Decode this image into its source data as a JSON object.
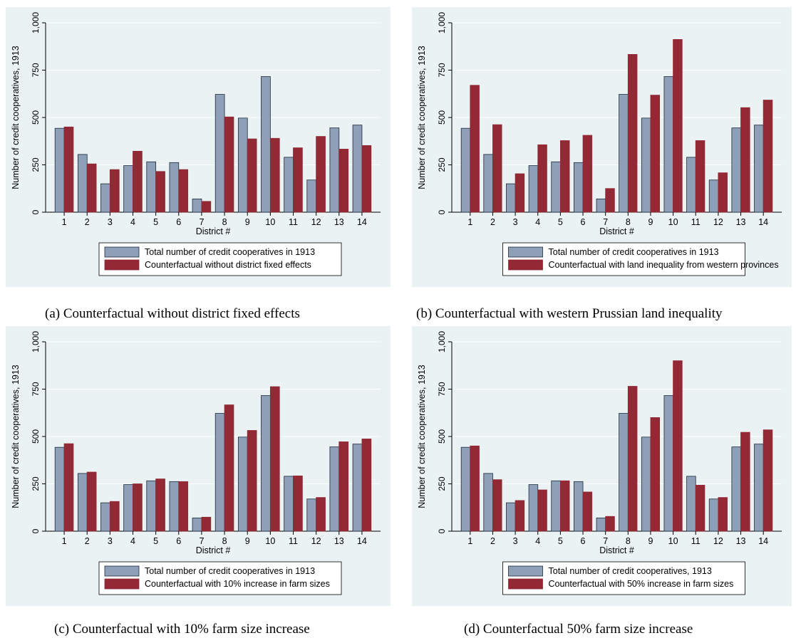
{
  "colors": {
    "background": "#eaf2f3",
    "series1_fill": "#8da0b8",
    "series1_stroke": "#1c2a3a",
    "series2_fill": "#922935",
    "series2_stroke": "#922935",
    "gridline": "#ffffff",
    "axis": "#000000"
  },
  "chart_data": [
    {
      "type": "bar",
      "caption": "(a) Counterfactual without district fixed effects",
      "xlabel": "District #",
      "ylabel": "Number of credit cooperatives, 1913",
      "ylim": [
        0,
        1000
      ],
      "yticks": [
        0,
        250,
        500,
        750,
        1000
      ],
      "ytick_labels": [
        "0",
        "250",
        "500",
        "750",
        "1,000"
      ],
      "grid": true,
      "legend": "bottom",
      "categories": [
        "1",
        "2",
        "3",
        "4",
        "5",
        "6",
        "7",
        "8",
        "9",
        "10",
        "11",
        "12",
        "13",
        "14"
      ],
      "series": [
        {
          "name": "Total number of credit cooperatives in 1913",
          "values": [
            443,
            305,
            150,
            246,
            266,
            262,
            70,
            622,
            497,
            716,
            290,
            170,
            445,
            460
          ]
        },
        {
          "name": "Counterfactual without district fixed effects",
          "values": [
            450,
            255,
            225,
            322,
            215,
            225,
            57,
            503,
            387,
            390,
            340,
            400,
            333,
            352
          ]
        }
      ]
    },
    {
      "type": "bar",
      "caption": "(b) Counterfactual with western Prussian land inequality",
      "xlabel": "District #",
      "ylabel": "Number of credit cooperatives, 1913",
      "ylim": [
        0,
        1000
      ],
      "yticks": [
        0,
        250,
        500,
        750,
        1000
      ],
      "ytick_labels": [
        "0",
        "250",
        "500",
        "750",
        "1,000"
      ],
      "grid": true,
      "legend": "bottom",
      "categories": [
        "1",
        "2",
        "3",
        "4",
        "5",
        "6",
        "7",
        "8",
        "9",
        "10",
        "11",
        "12",
        "13",
        "14"
      ],
      "series": [
        {
          "name": "Total number of credit cooperatives in 1913",
          "values": [
            443,
            305,
            150,
            246,
            266,
            262,
            70,
            622,
            497,
            716,
            290,
            170,
            445,
            460
          ]
        },
        {
          "name": "Counterfactual with land inequality from western provinces",
          "values": [
            670,
            462,
            203,
            356,
            378,
            406,
            125,
            833,
            618,
            912,
            378,
            208,
            552,
            592
          ]
        }
      ]
    },
    {
      "type": "bar",
      "caption": "(c) Counterfactual with 10% farm size increase",
      "xlabel": "District #",
      "ylabel": "Number of credit cooperatives, 1913",
      "ylim": [
        0,
        1000
      ],
      "yticks": [
        0,
        250,
        500,
        750,
        1000
      ],
      "ytick_labels": [
        "0",
        "250",
        "500",
        "750",
        "1,000"
      ],
      "grid": true,
      "legend": "bottom",
      "categories": [
        "1",
        "2",
        "3",
        "4",
        "5",
        "6",
        "7",
        "8",
        "9",
        "10",
        "11",
        "12",
        "13",
        "14"
      ],
      "series": [
        {
          "name": "Total number of credit cooperatives in 1913",
          "values": [
            443,
            305,
            150,
            246,
            266,
            262,
            70,
            622,
            497,
            716,
            290,
            170,
            445,
            460
          ]
        },
        {
          "name": "Counterfactual with 10% increase in farm sizes",
          "values": [
            462,
            312,
            157,
            250,
            276,
            262,
            74,
            667,
            532,
            763,
            292,
            178,
            472,
            487
          ]
        }
      ]
    },
    {
      "type": "bar",
      "caption": "(d) Counterfactual 50% farm size increase",
      "xlabel": "District #",
      "ylabel": "Number of credit cooperatives, 1913",
      "ylim": [
        0,
        1000
      ],
      "yticks": [
        0,
        250,
        500,
        750,
        1000
      ],
      "ytick_labels": [
        "0",
        "250",
        "500",
        "750",
        "1,000"
      ],
      "grid": true,
      "legend": "bottom",
      "categories": [
        "1",
        "2",
        "3",
        "4",
        "5",
        "6",
        "7",
        "8",
        "9",
        "10",
        "11",
        "12",
        "13",
        "14"
      ],
      "series": [
        {
          "name": "Total number of credit cooperatives, 1913",
          "values": [
            443,
            305,
            150,
            246,
            266,
            262,
            70,
            622,
            497,
            716,
            290,
            170,
            445,
            460
          ]
        },
        {
          "name": "Counterfactual with 50% increase in farm sizes",
          "values": [
            450,
            272,
            162,
            218,
            266,
            207,
            78,
            765,
            600,
            900,
            243,
            178,
            522,
            535
          ]
        }
      ]
    }
  ]
}
